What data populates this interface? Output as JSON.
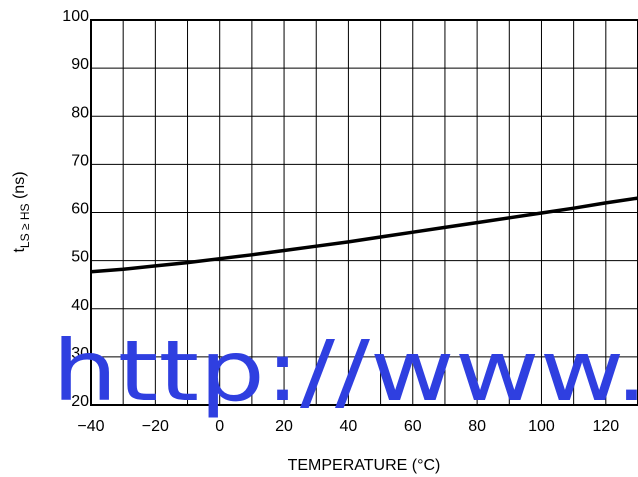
{
  "chart_data": {
    "type": "line",
    "xlabel": "TEMPERATURE (°C)",
    "ylabel": {
      "base": "t",
      "subscript": "LS ≥ HS",
      "suffix": " (ns)"
    },
    "xlim": [
      -40,
      130
    ],
    "ylim": [
      20,
      100
    ],
    "x_ticks": [
      -40,
      -20,
      0,
      20,
      40,
      60,
      80,
      100,
      120
    ],
    "y_ticks": [
      20,
      30,
      40,
      50,
      60,
      70,
      80,
      90,
      100
    ],
    "grid": true,
    "x_minor_step": 10,
    "y_minor_step": 10,
    "series": [
      {
        "color": "#000000",
        "x": [
          -40,
          -30,
          -20,
          -10,
          0,
          10,
          20,
          30,
          40,
          50,
          60,
          70,
          80,
          90,
          100,
          110,
          120,
          130
        ],
        "y": [
          47.7,
          48.2,
          48.9,
          49.6,
          50.4,
          51.2,
          52.1,
          53.0,
          53.9,
          54.9,
          55.9,
          56.9,
          57.9,
          58.9,
          59.9,
          60.9,
          62.0,
          63.0
        ]
      }
    ]
  },
  "watermark": {
    "text": "http://www.",
    "color": "#2f3fe0"
  }
}
